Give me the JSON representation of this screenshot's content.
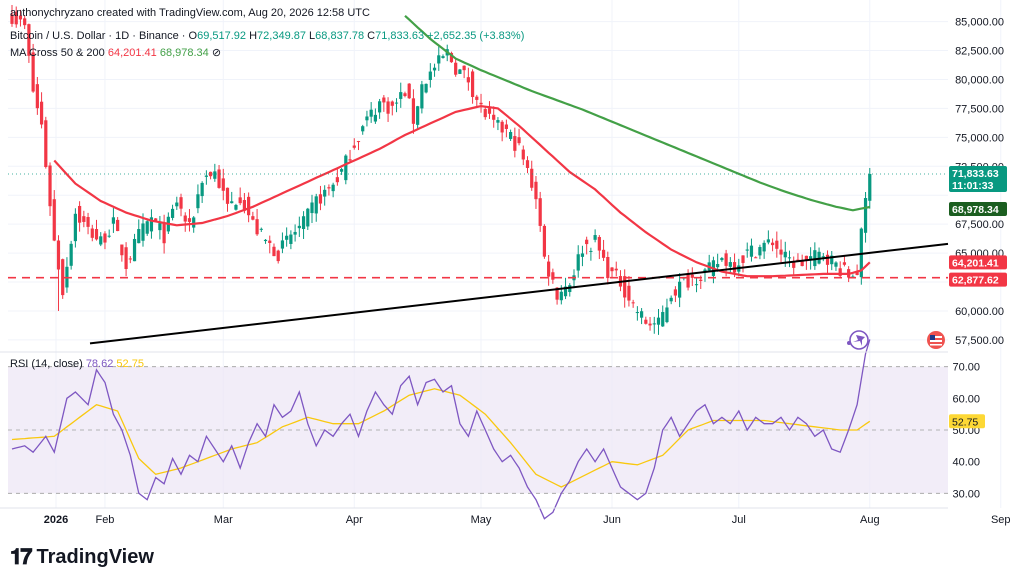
{
  "meta": {
    "attribution": "anthonychryzano created with TradingView.com, Aug 20, 2026 12:58 UTC",
    "brand": "TradingView"
  },
  "legend": {
    "symbol": "Bitcoin / U.S. Dollar · 1D · Binance",
    "ohlc": {
      "o_label": "O",
      "o": "69,517.92",
      "h_label": "H",
      "h": "72,349.87",
      "l_label": "L",
      "l": "68,837.78",
      "c_label": "C",
      "c": "71,833.63",
      "change": "+2,652.35 (+3.83%)"
    },
    "ma_label": "MA Cross 50 & 200",
    "ma_values": [
      "64,201.41",
      "68,978.34"
    ],
    "rsi_label": "RSI (14, close)",
    "rsi_values": [
      "78.62",
      "52.75"
    ]
  },
  "colors": {
    "up": "#089981",
    "down": "#f23645",
    "ma50": "#f23645",
    "ma200": "#43a047",
    "rsi": "#7e57c2",
    "rsi_ma": "#fdd835",
    "support": "#f23645",
    "trend": "#000000"
  },
  "price_labels": {
    "current": "71,833.63",
    "countdown": "11:01:33",
    "ma200": "68,978.34",
    "ma50": "64,201.41",
    "support": "62,877.62",
    "rsi_ma": "52.75"
  },
  "chart_data": {
    "type": "candlestick",
    "price_axis": {
      "ticks": [
        "85,000.00",
        "82,500.00",
        "80,000.00",
        "77,500.00",
        "75,000.00",
        "72,500.00",
        "67,500.00",
        "65,000.00",
        "60,000.00",
        "57,500.00"
      ],
      "range": [
        56800,
        86000
      ]
    },
    "rsi_axis": {
      "ticks": [
        "70.00",
        "60.00",
        "50.00",
        "40.00",
        "30.00"
      ],
      "range": [
        26,
        74
      ],
      "overbought": 70,
      "oversold": 30
    },
    "time_axis": {
      "labels": [
        "2026",
        "Feb",
        "Mar",
        "Apr",
        "May",
        "Jun",
        "Jul",
        "Aug",
        "Sep"
      ]
    },
    "support_level": 62877.62,
    "trendline": {
      "from": [
        "Dec 24, 2026-prior",
        57200
      ],
      "to": [
        "Sep 15",
        65800
      ]
    },
    "close_anchors": [
      [
        0,
        85500
      ],
      [
        3,
        84500
      ],
      [
        5,
        79000
      ],
      [
        7,
        76000
      ],
      [
        10,
        66000
      ],
      [
        12,
        61800
      ],
      [
        15,
        68500
      ],
      [
        18,
        67000
      ],
      [
        21,
        66000
      ],
      [
        24,
        67500
      ],
      [
        27,
        64000
      ],
      [
        30,
        66500
      ],
      [
        33,
        68000
      ],
      [
        36,
        66500
      ],
      [
        39,
        69500
      ],
      [
        42,
        67000
      ],
      [
        45,
        71500
      ],
      [
        48,
        72000
      ],
      [
        51,
        69000
      ],
      [
        54,
        70000
      ],
      [
        57,
        67500
      ],
      [
        60,
        66000
      ],
      [
        63,
        65000
      ],
      [
        66,
        66500
      ],
      [
        69,
        67500
      ],
      [
        72,
        69500
      ],
      [
        75,
        70500
      ],
      [
        78,
        72000
      ],
      [
        81,
        74500
      ],
      [
        84,
        76500
      ],
      [
        87,
        78000
      ],
      [
        90,
        77500
      ],
      [
        93,
        79000
      ],
      [
        95,
        76500
      ],
      [
        97,
        79500
      ],
      [
        100,
        81000
      ],
      [
        103,
        82300
      ],
      [
        105,
        81000
      ],
      [
        108,
        80000
      ],
      [
        111,
        77500
      ],
      [
        114,
        76000
      ],
      [
        117,
        75500
      ],
      [
        120,
        74000
      ],
      [
        122,
        72000
      ],
      [
        124,
        70000
      ],
      [
        126,
        64500
      ],
      [
        129,
        61500
      ],
      [
        132,
        62500
      ],
      [
        135,
        65500
      ],
      [
        138,
        66000
      ],
      [
        141,
        63500
      ],
      [
        144,
        62500
      ],
      [
        147,
        60500
      ],
      [
        150,
        59000
      ],
      [
        153,
        58800
      ],
      [
        156,
        61500
      ],
      [
        159,
        62500
      ],
      [
        162,
        63000
      ],
      [
        165,
        63500
      ],
      [
        168,
        64500
      ],
      [
        171,
        64000
      ],
      [
        174,
        65000
      ],
      [
        177,
        65500
      ],
      [
        180,
        66000
      ],
      [
        183,
        64500
      ],
      [
        186,
        64000
      ],
      [
        189,
        64500
      ],
      [
        192,
        65000
      ],
      [
        195,
        64000
      ],
      [
        198,
        63000
      ],
      [
        200,
        63500
      ],
      [
        202,
        69500
      ],
      [
        203,
        71833
      ]
    ],
    "ma50_anchors": [
      [
        10,
        73000
      ],
      [
        15,
        71000
      ],
      [
        21,
        69500
      ],
      [
        27,
        68500
      ],
      [
        33,
        67800
      ],
      [
        39,
        67400
      ],
      [
        45,
        67600
      ],
      [
        51,
        68200
      ],
      [
        57,
        69000
      ],
      [
        63,
        70000
      ],
      [
        69,
        71000
      ],
      [
        75,
        72000
      ],
      [
        81,
        73000
      ],
      [
        87,
        74000
      ],
      [
        93,
        75200
      ],
      [
        99,
        76200
      ],
      [
        105,
        77200
      ],
      [
        111,
        77700
      ],
      [
        115,
        77500
      ],
      [
        120,
        76000
      ],
      [
        126,
        74000
      ],
      [
        132,
        72000
      ],
      [
        138,
        70500
      ],
      [
        144,
        68500
      ],
      [
        150,
        66800
      ],
      [
        156,
        65300
      ],
      [
        162,
        64200
      ],
      [
        168,
        63400
      ],
      [
        174,
        63000
      ],
      [
        180,
        63000
      ],
      [
        186,
        63100
      ],
      [
        192,
        63200
      ],
      [
        198,
        63200
      ],
      [
        201,
        63500
      ],
      [
        203,
        64201
      ]
    ],
    "ma200_anchors": [
      [
        93,
        85500
      ],
      [
        99,
        83500
      ],
      [
        105,
        81800
      ],
      [
        111,
        80800
      ],
      [
        117,
        79900
      ],
      [
        123,
        79000
      ],
      [
        129,
        78200
      ],
      [
        135,
        77400
      ],
      [
        141,
        76500
      ],
      [
        147,
        75600
      ],
      [
        153,
        74700
      ],
      [
        159,
        73800
      ],
      [
        165,
        72900
      ],
      [
        171,
        72000
      ],
      [
        177,
        71100
      ],
      [
        183,
        70300
      ],
      [
        189,
        69600
      ],
      [
        195,
        69000
      ],
      [
        199,
        68700
      ],
      [
        203,
        68978
      ]
    ],
    "rsi_anchors": [
      [
        0,
        44
      ],
      [
        3,
        45
      ],
      [
        5,
        43
      ],
      [
        8,
        48
      ],
      [
        10,
        43
      ],
      [
        13,
        60
      ],
      [
        15,
        62
      ],
      [
        18,
        58
      ],
      [
        20,
        69
      ],
      [
        22,
        65
      ],
      [
        24,
        55
      ],
      [
        26,
        50
      ],
      [
        28,
        42
      ],
      [
        30,
        30
      ],
      [
        32,
        28
      ],
      [
        34,
        35
      ],
      [
        36,
        33
      ],
      [
        38,
        41
      ],
      [
        40,
        36
      ],
      [
        42,
        42
      ],
      [
        44,
        40
      ],
      [
        46,
        48
      ],
      [
        48,
        44
      ],
      [
        50,
        40
      ],
      [
        52,
        45
      ],
      [
        54,
        38
      ],
      [
        56,
        46
      ],
      [
        58,
        52
      ],
      [
        60,
        48
      ],
      [
        62,
        58
      ],
      [
        64,
        54
      ],
      [
        66,
        56
      ],
      [
        68,
        62
      ],
      [
        70,
        52
      ],
      [
        72,
        45
      ],
      [
        74,
        50
      ],
      [
        76,
        48
      ],
      [
        78,
        52
      ],
      [
        80,
        55
      ],
      [
        82,
        48
      ],
      [
        84,
        56
      ],
      [
        86,
        62
      ],
      [
        88,
        58
      ],
      [
        90,
        55
      ],
      [
        92,
        64
      ],
      [
        94,
        67
      ],
      [
        96,
        58
      ],
      [
        98,
        65
      ],
      [
        100,
        66
      ],
      [
        102,
        62
      ],
      [
        104,
        64
      ],
      [
        106,
        52
      ],
      [
        108,
        48
      ],
      [
        110,
        56
      ],
      [
        112,
        50
      ],
      [
        114,
        44
      ],
      [
        116,
        40
      ],
      [
        118,
        42
      ],
      [
        120,
        38
      ],
      [
        122,
        32
      ],
      [
        124,
        28
      ],
      [
        126,
        22
      ],
      [
        128,
        24
      ],
      [
        130,
        30
      ],
      [
        132,
        34
      ],
      [
        134,
        40
      ],
      [
        136,
        44
      ],
      [
        138,
        40
      ],
      [
        140,
        44
      ],
      [
        142,
        38
      ],
      [
        144,
        32
      ],
      [
        146,
        30
      ],
      [
        148,
        28
      ],
      [
        150,
        30
      ],
      [
        152,
        38
      ],
      [
        154,
        50
      ],
      [
        156,
        54
      ],
      [
        158,
        48
      ],
      [
        160,
        52
      ],
      [
        162,
        56
      ],
      [
        164,
        58
      ],
      [
        166,
        52
      ],
      [
        168,
        54
      ],
      [
        170,
        52
      ],
      [
        172,
        56
      ],
      [
        174,
        50
      ],
      [
        176,
        54
      ],
      [
        178,
        52
      ],
      [
        180,
        52
      ],
      [
        182,
        54
      ],
      [
        184,
        50
      ],
      [
        186,
        54
      ],
      [
        188,
        52
      ],
      [
        190,
        48
      ],
      [
        192,
        50
      ],
      [
        194,
        44
      ],
      [
        196,
        43
      ],
      [
        198,
        50
      ],
      [
        200,
        58
      ],
      [
        202,
        74
      ],
      [
        203,
        78.62
      ]
    ],
    "rsi_ma_anchors": [
      [
        0,
        47
      ],
      [
        10,
        48
      ],
      [
        20,
        58
      ],
      [
        25,
        56
      ],
      [
        30,
        41
      ],
      [
        34,
        36
      ],
      [
        40,
        38
      ],
      [
        46,
        41
      ],
      [
        52,
        44
      ],
      [
        58,
        46
      ],
      [
        64,
        51
      ],
      [
        70,
        54
      ],
      [
        76,
        52
      ],
      [
        82,
        52
      ],
      [
        88,
        56
      ],
      [
        94,
        61
      ],
      [
        100,
        63
      ],
      [
        106,
        61
      ],
      [
        112,
        55
      ],
      [
        118,
        46
      ],
      [
        124,
        36
      ],
      [
        130,
        32
      ],
      [
        136,
        36
      ],
      [
        142,
        40
      ],
      [
        148,
        39
      ],
      [
        154,
        42
      ],
      [
        160,
        50
      ],
      [
        166,
        53
      ],
      [
        172,
        53
      ],
      [
        178,
        53
      ],
      [
        184,
        52
      ],
      [
        190,
        51
      ],
      [
        196,
        50
      ],
      [
        200,
        50
      ],
      [
        203,
        52.75
      ]
    ]
  }
}
